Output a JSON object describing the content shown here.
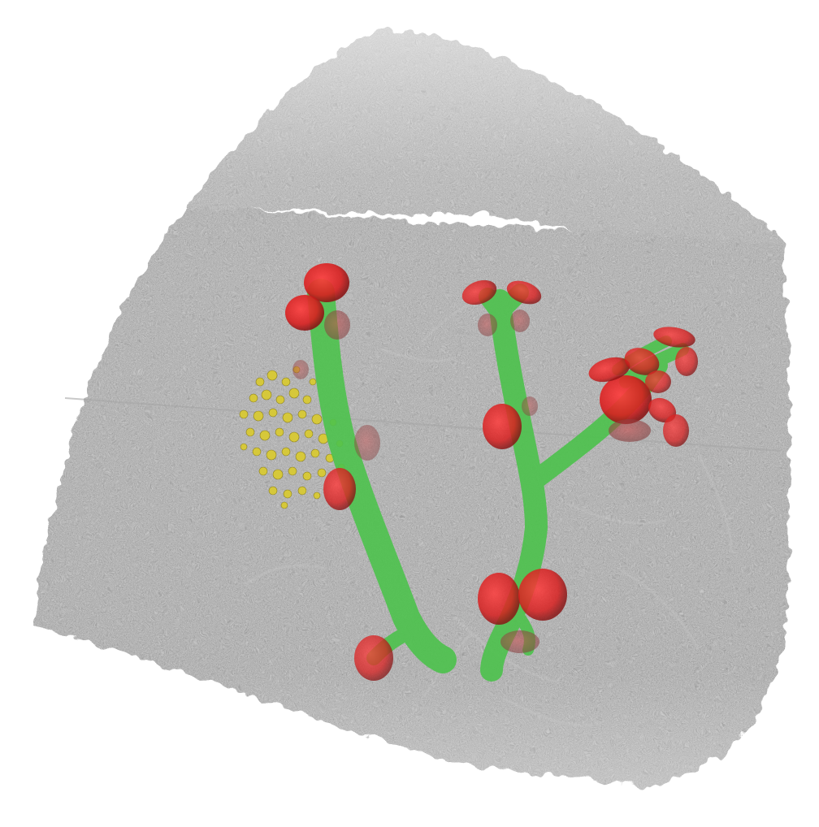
{
  "image": {
    "kind": "3d-microscopy-volume-render",
    "background_color": "#ffffff",
    "tissue_color": "#8c8c8c",
    "tissue_edge_color": "#d9d9d9",
    "vessel_color": "#4cc24c",
    "marker_color": "#e01f1f",
    "cluster_color": "#d6c83a",
    "text_labels": []
  }
}
